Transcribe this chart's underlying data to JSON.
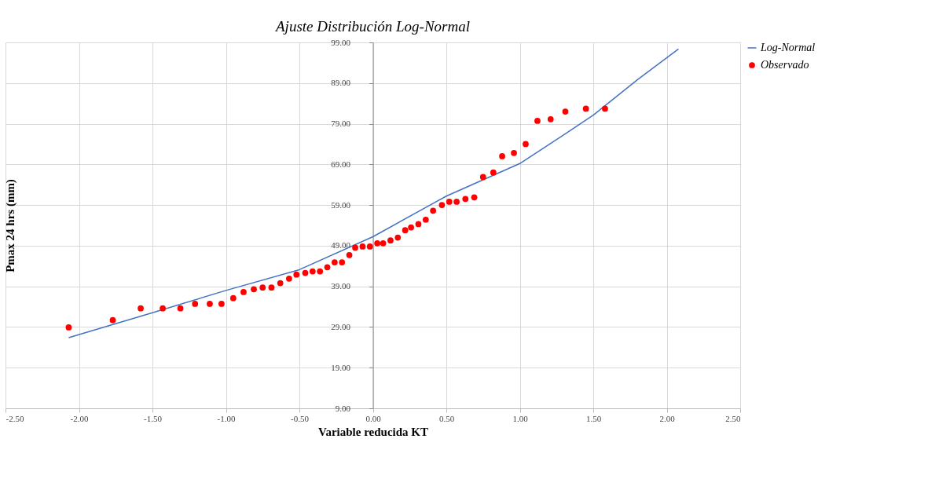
{
  "chart_data": {
    "type": "scatter",
    "title": "Ajuste Distribución Log-Normal",
    "xlabel": "Variable reducida KT",
    "ylabel": "Pmax 24 hrs (mm)",
    "xlim": [
      -2.5,
      2.5
    ],
    "xticks": [
      {
        "value": -2.5,
        "label": "-2.50"
      },
      {
        "value": -2,
        "label": "-2.00"
      },
      {
        "value": -1.5,
        "label": "-1.50"
      },
      {
        "value": -1,
        "label": "-1.00"
      },
      {
        "value": -0.5,
        "label": "-0.50"
      },
      {
        "value": 0,
        "label": "0.00"
      },
      {
        "value": 0.5,
        "label": "0.50"
      },
      {
        "value": 1,
        "label": "1.00"
      },
      {
        "value": 1.5,
        "label": "1.50"
      },
      {
        "value": 2,
        "label": "2.00"
      },
      {
        "value": 2.5,
        "label": "2.50"
      }
    ],
    "ylim": [
      9,
      99
    ],
    "yticks": [
      {
        "value": 9,
        "label": "9.00"
      },
      {
        "value": 19,
        "label": "19.00"
      },
      {
        "value": 29,
        "label": "29.00"
      },
      {
        "value": 39,
        "label": "39.00"
      },
      {
        "value": 49,
        "label": "49.00"
      },
      {
        "value": 59,
        "label": "59.00"
      },
      {
        "value": 69,
        "label": "69.00"
      },
      {
        "value": 79,
        "label": "79.00"
      },
      {
        "value": 89,
        "label": "89.00"
      },
      {
        "value": 99,
        "label": "99.00"
      }
    ],
    "grid": true,
    "legend": "right",
    "series": [
      {
        "name": "Log-Normal",
        "type": "line",
        "color": "#4472c4",
        "line_style": "solid",
        "marker": "none",
        "x": [
          -2.07,
          -1.5,
          -1.0,
          -0.5,
          0.0,
          0.5,
          1.0,
          1.3,
          1.5,
          1.8,
          2.08
        ],
        "values": [
          26.4,
          32.5,
          38.0,
          43.1,
          51.2,
          61.2,
          69.2,
          76.3,
          81.1,
          89.8,
          97.4
        ]
      },
      {
        "name": "Observado",
        "color": "#ff0000",
        "marker": "circle",
        "x": [
          -2.07,
          -1.77,
          -1.58,
          -1.43,
          -1.31,
          -1.21,
          -1.11,
          -1.03,
          -0.95,
          -0.88,
          -0.81,
          -0.75,
          -0.69,
          -0.63,
          -0.57,
          -0.52,
          -0.46,
          -0.41,
          -0.36,
          -0.31,
          -0.26,
          -0.21,
          -0.16,
          -0.12,
          -0.07,
          -0.02,
          0.03,
          0.07,
          0.12,
          0.17,
          0.22,
          0.26,
          0.31,
          0.36,
          0.41,
          0.47,
          0.52,
          0.57,
          0.63,
          0.69,
          0.75,
          0.82,
          0.88,
          0.96,
          1.04,
          1.12,
          1.21,
          1.31,
          1.45,
          1.58
        ],
        "values": [
          28.9,
          30.7,
          33.6,
          33.6,
          33.6,
          34.7,
          34.7,
          34.7,
          36.1,
          37.6,
          38.3,
          38.7,
          38.7,
          39.8,
          40.9,
          41.9,
          42.3,
          42.7,
          42.7,
          43.7,
          44.9,
          44.9,
          46.7,
          48.5,
          48.8,
          48.8,
          49.6,
          49.6,
          50.3,
          51.0,
          52.8,
          53.5,
          54.3,
          55.4,
          57.6,
          59.0,
          59.8,
          59.8,
          60.5,
          60.9,
          65.9,
          67.0,
          71.0,
          71.8,
          74.0,
          79.7,
          80.1,
          82.0,
          82.7,
          82.7
        ]
      }
    ]
  }
}
